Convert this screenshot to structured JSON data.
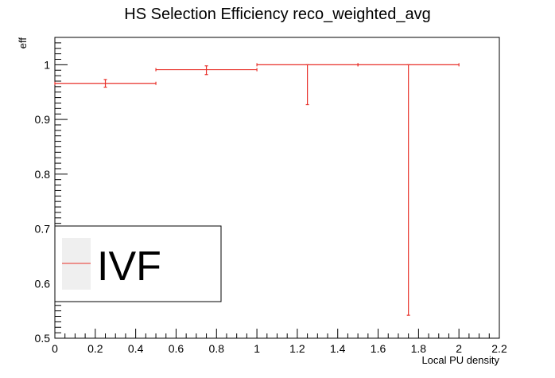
{
  "chart_data": {
    "type": "scatter",
    "title": "HS Selection Efficiency reco_weighted_avg",
    "xlabel": "Local PU density",
    "ylabel": "eff",
    "xlim": [
      0,
      2.2
    ],
    "ylim": [
      0.5,
      1.05
    ],
    "grid": false,
    "legend_position": "bottom-left",
    "x_ticks": [
      "0",
      "0.2",
      "0.4",
      "0.6",
      "0.8",
      "1",
      "1.2",
      "1.4",
      "1.6",
      "1.8",
      "2",
      "2.2"
    ],
    "y_ticks": [
      "0.5",
      "0.6",
      "0.7",
      "0.8",
      "0.9",
      "1"
    ],
    "series": [
      {
        "name": "IVF",
        "color": "#e8312a",
        "points": [
          {
            "x": 0.25,
            "xlo": 0.0,
            "xhi": 0.5,
            "y": 0.966,
            "ylo": 0.959,
            "yhi": 0.973
          },
          {
            "x": 0.75,
            "xlo": 0.5,
            "xhi": 1.0,
            "y": 0.991,
            "ylo": 0.982,
            "yhi": 0.998
          },
          {
            "x": 1.25,
            "xlo": 1.0,
            "xhi": 1.5,
            "y": 1.0,
            "ylo": 0.927,
            "yhi": 1.0
          },
          {
            "x": 1.75,
            "xlo": 1.5,
            "xhi": 2.0,
            "y": 1.0,
            "ylo": 0.542,
            "yhi": 1.0
          }
        ]
      }
    ]
  }
}
